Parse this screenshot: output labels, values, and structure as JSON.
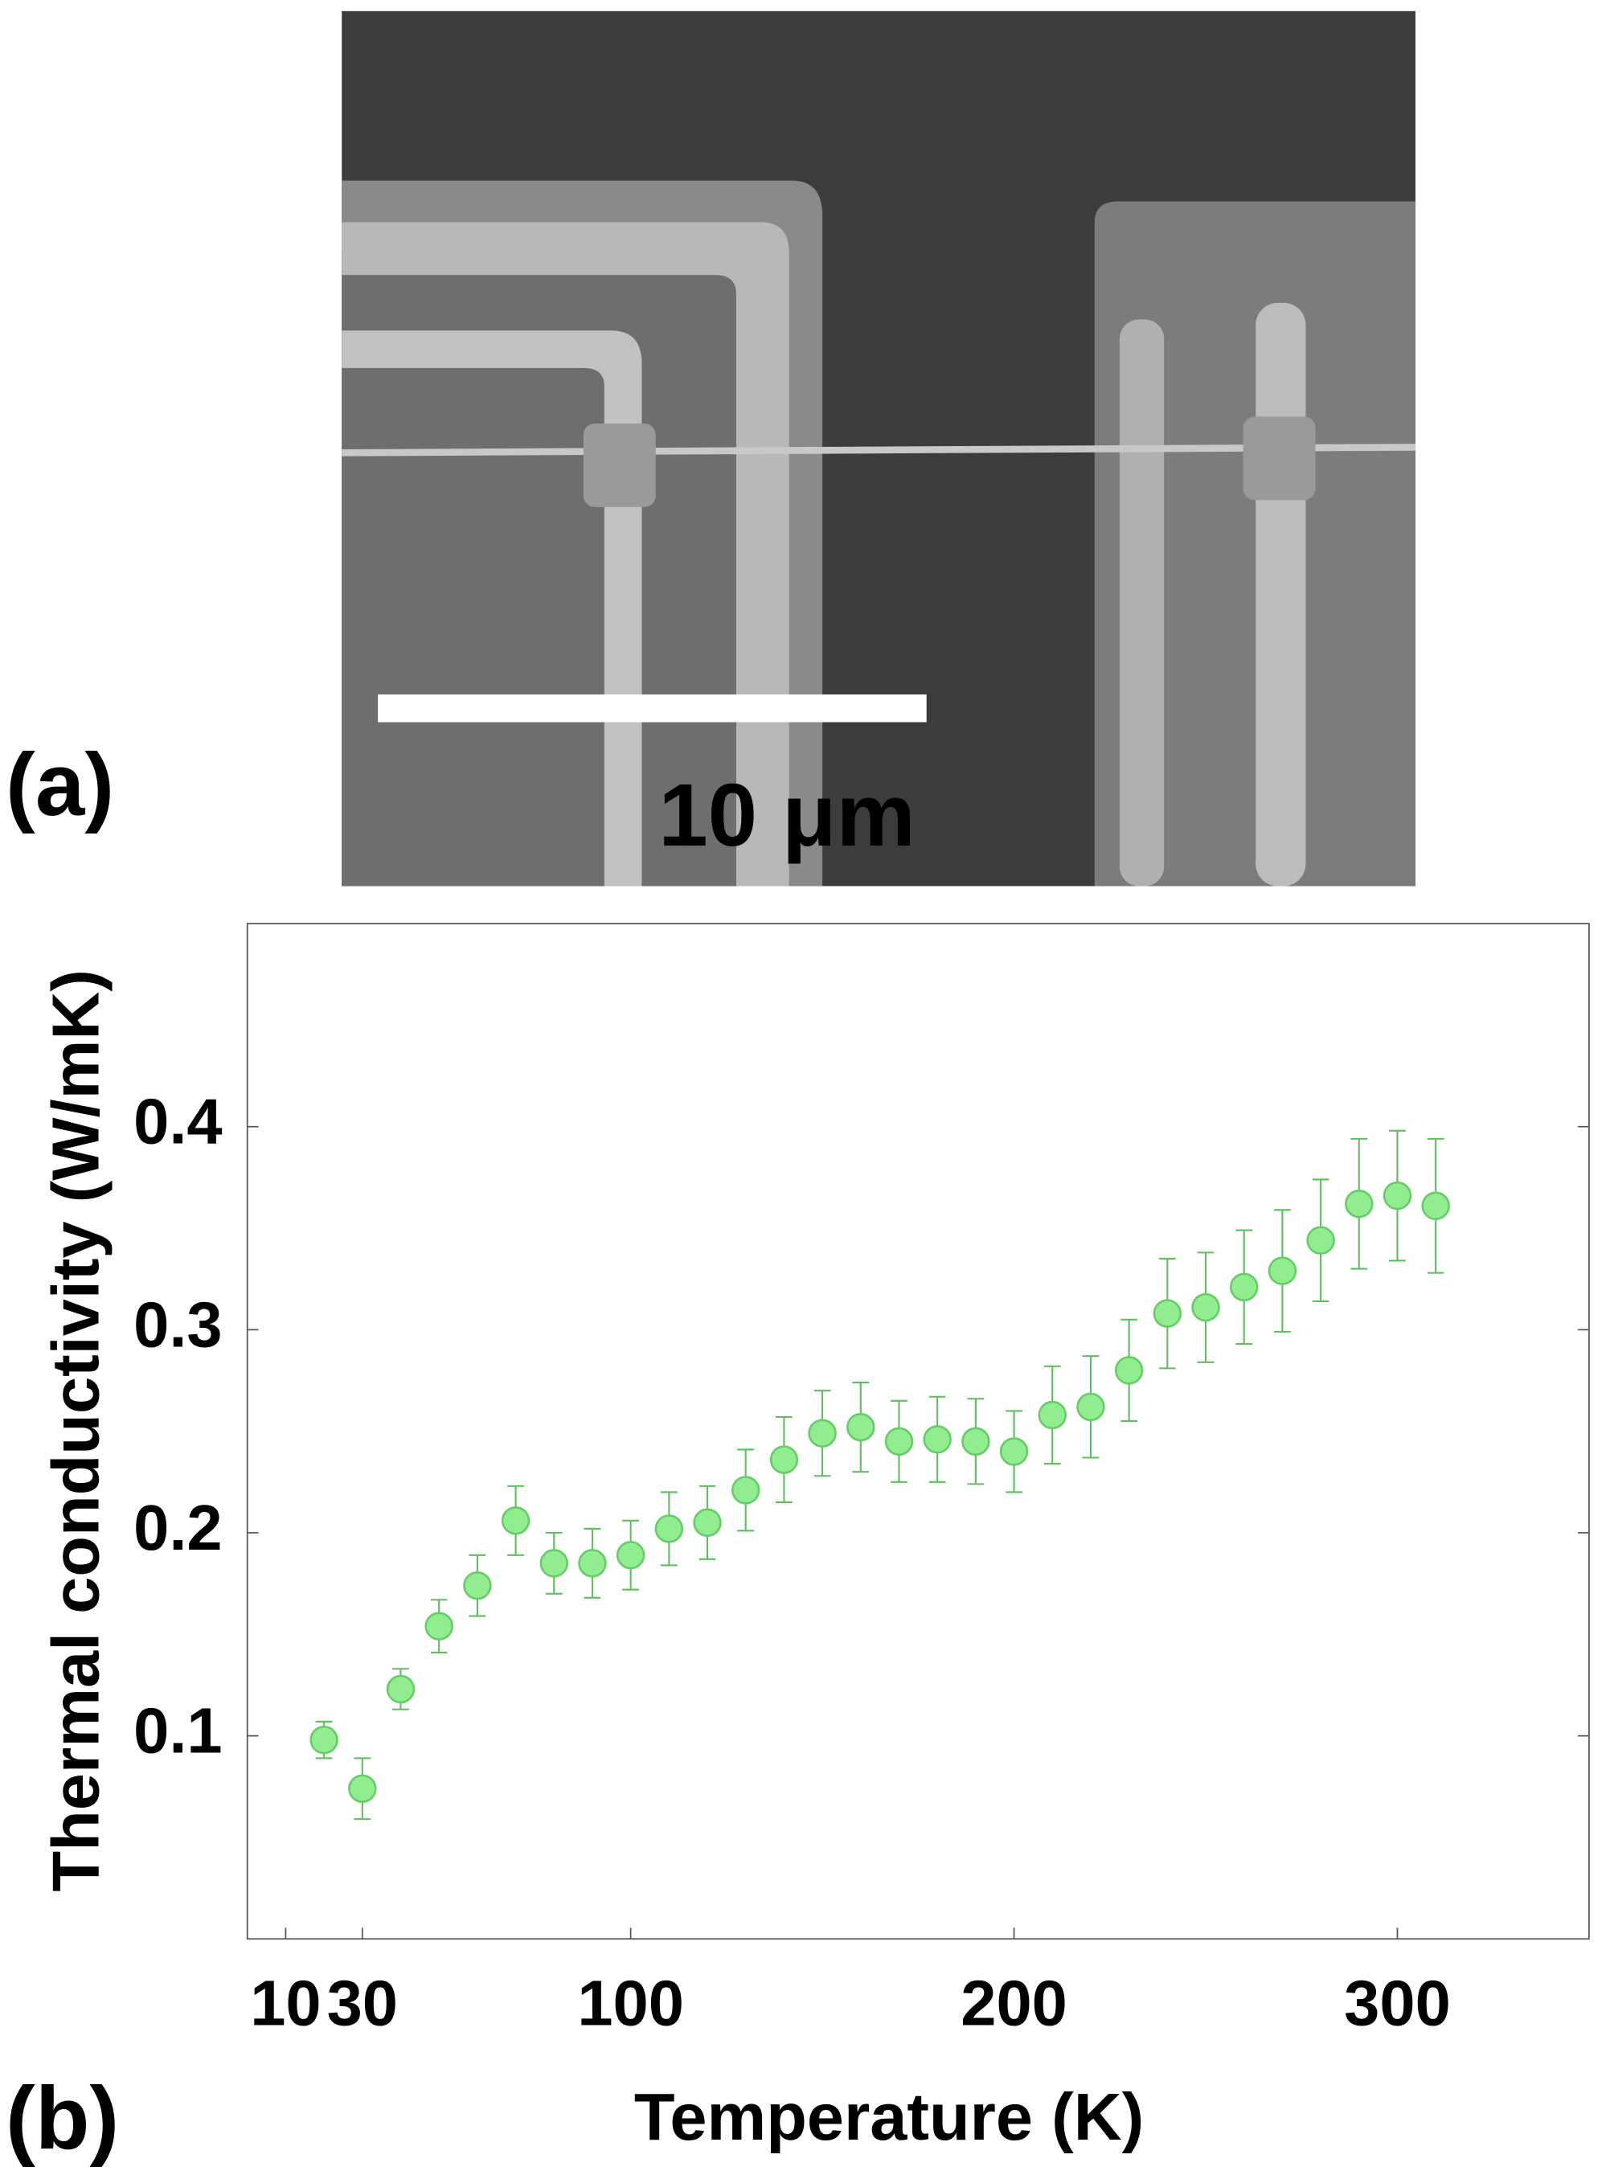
{
  "panel_a": {
    "label": "(a)",
    "scale_bar": "10 μm"
  },
  "chart_data": {
    "type": "scatter",
    "panel_label": "(b)",
    "x_label": "Temperature (K)",
    "y_label": "Thermal conductivity (W/mK)",
    "xlim": [
      0,
      350
    ],
    "xticks": [
      10,
      30,
      100,
      200,
      300
    ],
    "ylim": [
      0,
      0.5
    ],
    "yticks": [
      0.1,
      0.2,
      0.3,
      0.4
    ],
    "x": [
      20,
      30,
      40,
      50,
      60,
      70,
      80,
      90,
      100,
      110,
      120,
      130,
      140,
      150,
      160,
      170,
      180,
      190,
      200,
      210,
      220,
      230,
      240,
      250,
      260,
      270,
      280,
      290,
      300,
      310
    ],
    "series": [
      {
        "color": "#90ee90",
        "values": [
          0.098,
          0.074,
          0.123,
          0.154,
          0.174,
          0.206,
          0.185,
          0.185,
          0.189,
          0.202,
          0.205,
          0.221,
          0.236,
          0.249,
          0.252,
          0.245,
          0.246,
          0.245,
          0.24,
          0.258,
          0.262,
          0.28,
          0.308,
          0.311,
          0.321,
          0.329,
          0.344,
          0.362,
          0.366,
          0.361
        ],
        "errors": [
          0.009,
          0.015,
          0.01,
          0.013,
          0.015,
          0.017,
          0.015,
          0.017,
          0.017,
          0.018,
          0.018,
          0.02,
          0.021,
          0.021,
          0.022,
          0.02,
          0.021,
          0.021,
          0.02,
          0.024,
          0.025,
          0.025,
          0.027,
          0.027,
          0.028,
          0.03,
          0.03,
          0.032,
          0.032,
          0.033
        ]
      }
    ]
  }
}
